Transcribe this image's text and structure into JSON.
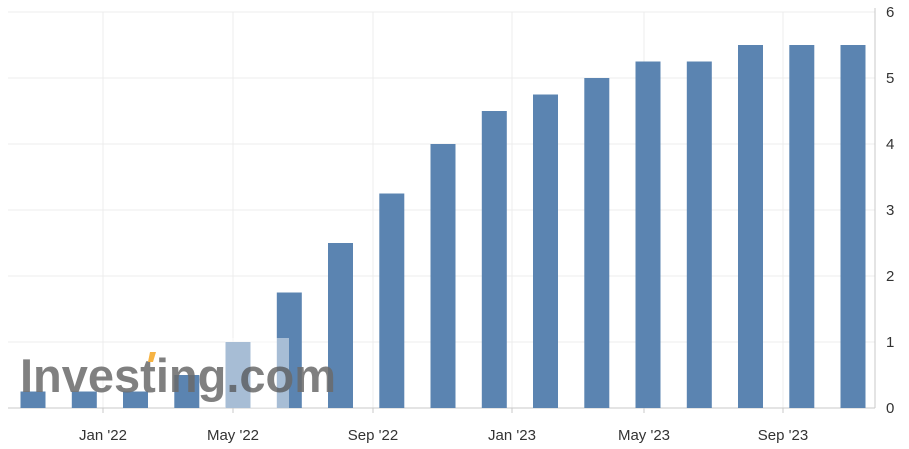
{
  "chart_data": {
    "type": "bar",
    "title": "",
    "xlabel": "",
    "ylabel": "",
    "ylim": [
      0,
      6
    ],
    "yticks": [
      0,
      1,
      2,
      3,
      4,
      5,
      6
    ],
    "y_axis_side": "right",
    "grid": true,
    "legend": "none",
    "categories": [
      "Nov '21",
      "Dec '21",
      "Feb '22",
      "Mar '22",
      "May '22",
      "Jun '22",
      "Jul '22",
      "Sep '22",
      "Nov '22",
      "Dec '22",
      "Feb '23",
      "Mar '23",
      "May '23",
      "Jun '23",
      "Jul '23",
      "Sep '23",
      "Nov '23"
    ],
    "values": [
      0.25,
      0.25,
      0.25,
      0.5,
      1.0,
      1.75,
      2.5,
      3.25,
      4.0,
      4.5,
      4.75,
      5.0,
      5.25,
      5.25,
      5.5,
      5.5,
      5.5
    ],
    "xtick_labels": [
      "Jan '22",
      "May '22",
      "Sep '22",
      "Jan '23",
      "May '23",
      "Sep '23"
    ],
    "bar_color": "#5b84b1",
    "watermark": "Investing.com"
  }
}
